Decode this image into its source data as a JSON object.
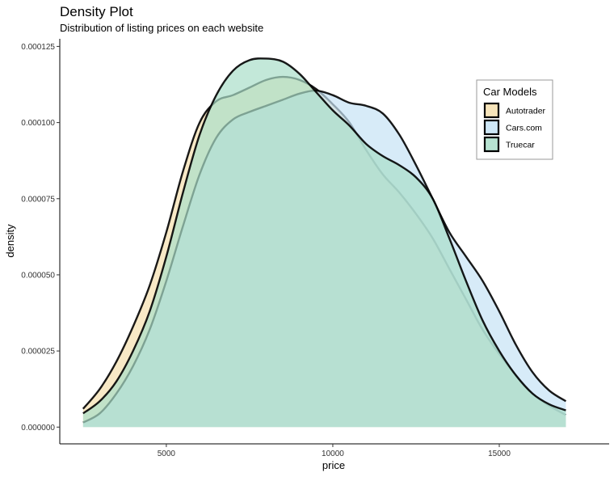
{
  "chart_data": {
    "type": "area",
    "title": "Density Plot",
    "subtitle": "Distribution of listing prices on each website",
    "xlabel": "price",
    "ylabel": "density",
    "xlim": [
      1800,
      18300
    ],
    "ylim": [
      -5.5e-06,
      0.0001275
    ],
    "x_ticks": [
      5000,
      10000,
      15000
    ],
    "x_tick_labels": [
      "5000",
      "10000",
      "15000"
    ],
    "y_ticks": [
      0,
      2.5e-05,
      5e-05,
      7.5e-05,
      0.0001,
      0.000125
    ],
    "y_tick_labels": [
      "0.000000",
      "0.000025",
      "0.000050",
      "0.000075",
      "0.000100",
      "0.000125"
    ],
    "grid": false,
    "legend": {
      "title": "Car Models",
      "position": "top-right"
    },
    "series": [
      {
        "name": "Autotrader",
        "color": "#f5dfae",
        "x": [
          2500,
          3000,
          3500,
          4000,
          4500,
          5000,
          5500,
          6000,
          6500,
          7000,
          7500,
          8000,
          8500,
          9000,
          9500,
          10000,
          10500,
          11000,
          11500,
          12000,
          12500,
          13000,
          13500,
          14000,
          14500,
          15000,
          15500,
          16000,
          16500,
          17000
        ],
        "values": [
          6e-06,
          1.25e-05,
          2.15e-05,
          3.3e-05,
          4.65e-05,
          6.4e-05,
          8.4e-05,
          0.0001,
          0.000107,
          0.000109,
          0.0001115,
          0.000114,
          0.000115,
          0.000114,
          0.000111,
          0.000106,
          0.0001,
          9.1e-05,
          8.3e-05,
          7.7e-05,
          7e-05,
          6.2e-05,
          5.2e-05,
          4.2e-05,
          3.2e-05,
          2.4e-05,
          1.7e-05,
          1.1e-05,
          7e-06,
          4e-06
        ]
      },
      {
        "name": "Cars.com",
        "color": "#c6e3f5",
        "x": [
          2500,
          3000,
          3500,
          4000,
          4500,
          5000,
          5500,
          6000,
          6500,
          7000,
          7500,
          8000,
          8500,
          9000,
          9500,
          10000,
          10500,
          11000,
          11500,
          12000,
          12500,
          13000,
          13500,
          14000,
          14500,
          15000,
          15500,
          16000,
          16500,
          17000
        ],
        "values": [
          1.5e-06,
          4.5e-06,
          1.1e-05,
          2e-05,
          3.2e-05,
          4.8e-05,
          6.6e-05,
          8.3e-05,
          9.5e-05,
          0.000101,
          0.0001035,
          0.0001055,
          0.0001075,
          0.0001095,
          0.0001105,
          0.000109,
          0.0001065,
          0.0001055,
          0.000103,
          9.6e-05,
          8.6e-05,
          7.5e-05,
          6.4e-05,
          5.6e-05,
          4.8e-05,
          3.8e-05,
          2.7e-05,
          1.8e-05,
          1.2e-05,
          8.5e-06
        ]
      },
      {
        "name": "Truecar",
        "color": "#aadec9",
        "x": [
          2500,
          3000,
          3500,
          4000,
          4500,
          5000,
          5500,
          6000,
          6500,
          7000,
          7500,
          8000,
          8500,
          9000,
          9500,
          10000,
          10500,
          11000,
          11500,
          12000,
          12500,
          13000,
          13500,
          14000,
          14500,
          15000,
          15500,
          16000,
          16500,
          17000
        ],
        "values": [
          4.5e-06,
          8.5e-06,
          1.5e-05,
          2.5e-05,
          3.8e-05,
          5.6e-05,
          7.7e-05,
          9.6e-05,
          0.000109,
          0.000117,
          0.0001205,
          0.000121,
          0.00012,
          0.000116,
          0.00011,
          0.000104,
          9.9e-05,
          9.3e-05,
          8.9e-05,
          8.6e-05,
          8.2e-05,
          7.5e-05,
          6.2e-05,
          4.8e-05,
          3.5e-05,
          2.5e-05,
          1.7e-05,
          1.1e-05,
          7.5e-06,
          5.5e-06
        ]
      }
    ]
  }
}
